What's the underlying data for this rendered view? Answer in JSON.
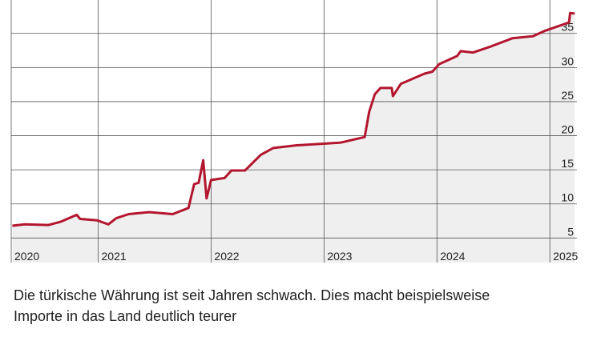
{
  "chart_data": {
    "type": "line",
    "x": [
      2020.24,
      2020.35,
      2020.56,
      2020.67,
      2020.81,
      2020.84,
      2020.99,
      2021.09,
      2021.16,
      2021.27,
      2021.45,
      2021.66,
      2021.8,
      2021.85,
      2021.89,
      2021.93,
      2021.96,
      2022.0,
      2022.12,
      2022.18,
      2022.3,
      2022.44,
      2022.55,
      2022.76,
      2022.97,
      2023.15,
      2023.36,
      2023.4,
      2023.45,
      2023.5,
      2023.6,
      2023.61,
      2023.68,
      2023.89,
      2023.96,
      2024.02,
      2024.18,
      2024.21,
      2024.32,
      2024.48,
      2024.67,
      2024.85,
      2024.96,
      2025.17,
      2025.18,
      2025.22
    ],
    "series": [
      {
        "color": "#b3162f",
        "fill": "#efefef",
        "values": [
          6.8,
          7.0,
          6.9,
          7.4,
          8.4,
          7.8,
          7.6,
          7.0,
          7.9,
          8.5,
          8.8,
          8.5,
          9.4,
          12.9,
          13.1,
          16.4,
          10.8,
          13.5,
          13.8,
          14.9,
          14.9,
          17.2,
          18.2,
          18.6,
          18.8,
          19.0,
          19.8,
          23.5,
          26.1,
          27.0,
          27.0,
          25.8,
          27.6,
          29.1,
          29.4,
          30.5,
          31.7,
          32.4,
          32.2,
          33.1,
          34.3,
          34.6,
          35.4,
          36.6,
          38.0,
          37.9
        ]
      }
    ],
    "xlim": [
      2020.23,
      2025.24
    ],
    "xticks": [
      {
        "value": 2020.23,
        "label": "2020"
      },
      2021,
      2022,
      2023,
      2024,
      2025
    ],
    "ylim": [
      1.4,
      39.9
    ],
    "yticks": [
      5,
      10,
      15,
      20,
      25,
      30,
      35
    ],
    "grid": true,
    "caption": [
      "Die türkische Währung ist seit Jahren schwach. Dies macht beispielsweise",
      "Importe in das Land deutlich teurer"
    ]
  }
}
